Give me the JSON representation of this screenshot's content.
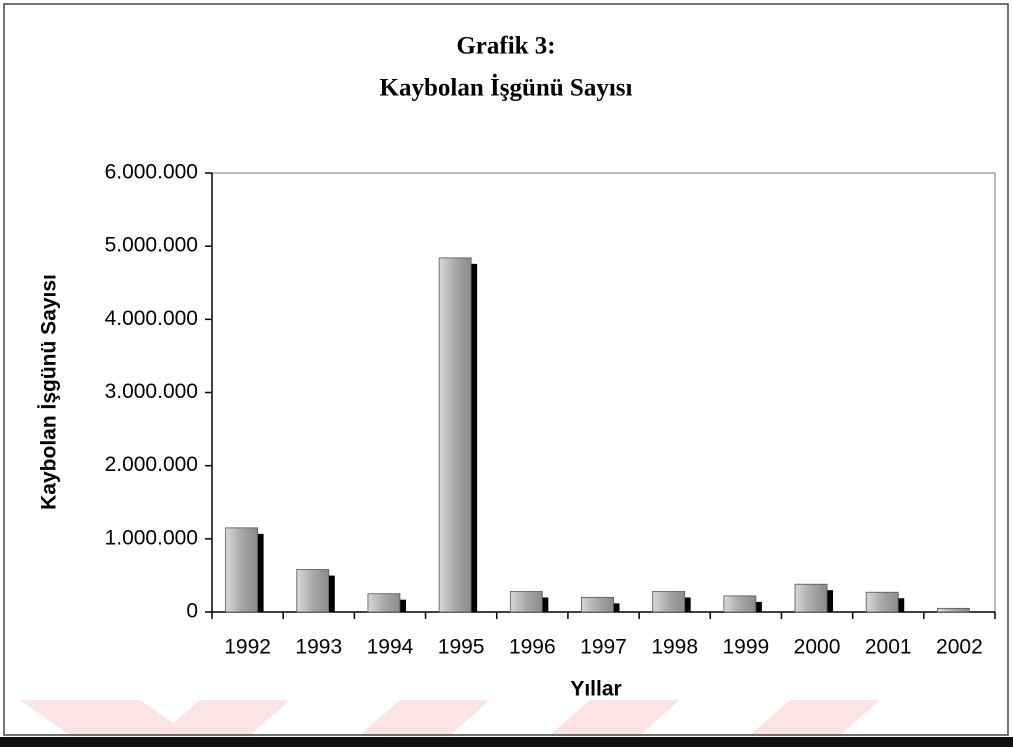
{
  "chart_data": {
    "type": "bar",
    "title": "Grafik 3:",
    "subtitle": "Kaybolan İşgünü Sayısı",
    "x_label": "Yıllar",
    "y_label": "Kaybolan İşgünü Sayısı",
    "categories": [
      "1992",
      "1993",
      "1994",
      "1995",
      "1996",
      "1997",
      "1998",
      "1999",
      "2000",
      "2001",
      "2002"
    ],
    "values": [
      1150000,
      580000,
      250000,
      4840000,
      280000,
      200000,
      280000,
      220000,
      380000,
      270000,
      50000
    ],
    "color": "#b4b4b4",
    "shadow_color": "#000000",
    "ylim": [
      0,
      6000000
    ],
    "yticks": [
      0,
      {
        "value": 1000000,
        "label": "1.000.000"
      },
      {
        "value": 2000000,
        "label": "2.000.000"
      },
      {
        "value": 3000000,
        "label": "3.000.000"
      },
      {
        "value": 4000000,
        "label": "4.000.000"
      },
      {
        "value": 5000000,
        "label": "5.000.000"
      },
      {
        "value": 6000000,
        "label": "6.000.000"
      }
    ],
    "grid": false
  }
}
